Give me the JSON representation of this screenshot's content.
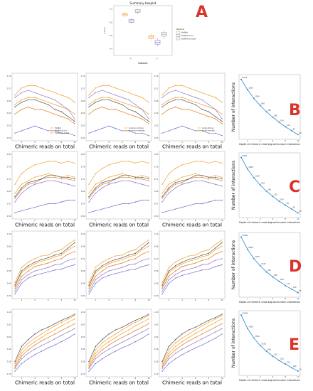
{
  "figure": {
    "letters": [
      "A",
      "B",
      "C",
      "D",
      "E"
    ]
  },
  "chart_data": [
    {
      "type": "box",
      "panel": "A",
      "title": "Summary boxplot",
      "xlabel": "Dataset",
      "ylabel": "F-score",
      "categories": [
        "fl",
        "fl"
      ],
      "legend": {
        "title": "Methods",
        "entries": [
          "HisMet",
          "HisMet as tcc",
          "HisMet as toast"
        ],
        "placement": "right"
      },
      "series": [
        {
          "name": "HisMet",
          "color": "#f0a030",
          "boxes": [
            [
              0.88,
              0.9,
              0.92,
              0.93,
              0.95
            ],
            [
              0.52,
              0.55,
              0.58,
              0.6,
              0.63
            ]
          ]
        },
        {
          "name": "HisMet as tcc",
          "color": "#8a7fd0",
          "boxes": [
            [
              0.78,
              0.8,
              0.82,
              0.84,
              0.86
            ],
            [
              0.44,
              0.47,
              0.5,
              0.53,
              0.56
            ]
          ]
        },
        {
          "name": "HisMet as toast",
          "color": "#9a9a9a",
          "boxes": [
            [
              0.92,
              0.95,
              0.97,
              0.99,
              1.0
            ],
            [
              0.55,
              0.59,
              0.62,
              0.65,
              0.68
            ]
          ]
        }
      ],
      "ylim": [
        0.3,
        1.05
      ]
    },
    {
      "type": "line",
      "panel": "B",
      "rows": 1,
      "xlabel": "Chimeric reads on total",
      "x": [
        1,
        2,
        3,
        4,
        5,
        6,
        7,
        8,
        9,
        10
      ],
      "ylim": [
        0.5,
        0.76
      ],
      "yticks": [
        0.5,
        0.55,
        0.6,
        0.65,
        0.7,
        0.75
      ],
      "legends": [
        [
          "HisMet",
          "HisMet as tcc",
          "HisMet as toast"
        ],
        [
          "precision-strong",
          "precision-overlap"
        ],
        [
          "recall-strong",
          "recall-overlap"
        ]
      ],
      "series": [
        {
          "color": "#f0a030",
          "values": [
            0.68,
            0.71,
            0.72,
            0.72,
            0.71,
            0.7,
            0.69,
            0.68,
            0.67,
            0.65
          ]
        },
        {
          "color": "#f0a030",
          "values": [
            0.64,
            0.66,
            0.67,
            0.67,
            0.66,
            0.65,
            0.64,
            0.63,
            0.62,
            0.6
          ]
        },
        {
          "color": "#e08020",
          "values": [
            0.6,
            0.62,
            0.63,
            0.62,
            0.62,
            0.61,
            0.6,
            0.59,
            0.58,
            0.56
          ]
        },
        {
          "color": "#8a7fd0",
          "values": [
            0.67,
            0.69,
            0.7,
            0.69,
            0.68,
            0.67,
            0.66,
            0.64,
            0.62,
            0.58
          ]
        },
        {
          "color": "#7a70c8",
          "values": [
            0.52,
            0.53,
            0.54,
            0.55,
            0.54,
            0.53,
            0.53,
            0.52,
            0.52,
            0.51
          ]
        },
        {
          "color": "#555555",
          "values": [
            0.63,
            0.65,
            0.66,
            0.66,
            0.65,
            0.64,
            0.62,
            0.61,
            0.59,
            0.57
          ]
        }
      ]
    },
    {
      "type": "line",
      "panel": "C",
      "xlabel": "Chimeric reads on total",
      "x": [
        1,
        2,
        3,
        4,
        5,
        6,
        7,
        8,
        9,
        10
      ],
      "ylim": [
        0.5,
        0.85
      ],
      "series": [
        {
          "color": "#f0a030",
          "values": [
            0.68,
            0.74,
            0.77,
            0.79,
            0.8,
            0.81,
            0.81,
            0.8,
            0.81,
            0.8
          ]
        },
        {
          "color": "#f0a030",
          "values": [
            0.63,
            0.68,
            0.7,
            0.72,
            0.73,
            0.74,
            0.73,
            0.72,
            0.73,
            0.72
          ]
        },
        {
          "color": "#e08020",
          "values": [
            0.6,
            0.65,
            0.68,
            0.69,
            0.71,
            0.72,
            0.72,
            0.71,
            0.71,
            0.7
          ]
        },
        {
          "color": "#8a7fd0",
          "values": [
            0.58,
            0.63,
            0.66,
            0.68,
            0.69,
            0.7,
            0.7,
            0.69,
            0.68,
            0.67
          ]
        },
        {
          "color": "#7a70c8",
          "values": [
            0.52,
            0.53,
            0.54,
            0.55,
            0.56,
            0.57,
            0.57,
            0.58,
            0.59,
            0.59
          ]
        },
        {
          "color": "#555555",
          "values": [
            0.61,
            0.66,
            0.69,
            0.7,
            0.71,
            0.73,
            0.73,
            0.72,
            0.72,
            0.71
          ]
        }
      ]
    },
    {
      "type": "line",
      "panel": "D",
      "x": [
        1,
        2,
        3,
        4,
        5,
        6,
        7,
        8,
        9,
        10
      ],
      "ylim": [
        0.3,
        1.0
      ],
      "series": [
        {
          "color": "#f0a030",
          "values": [
            0.45,
            0.62,
            0.68,
            0.72,
            0.75,
            0.76,
            0.8,
            0.82,
            0.88,
            0.93
          ]
        },
        {
          "color": "#f0a030",
          "values": [
            0.4,
            0.56,
            0.62,
            0.66,
            0.69,
            0.71,
            0.74,
            0.76,
            0.82,
            0.86
          ]
        },
        {
          "color": "#e08020",
          "values": [
            0.38,
            0.52,
            0.58,
            0.63,
            0.65,
            0.67,
            0.7,
            0.72,
            0.77,
            0.8
          ]
        },
        {
          "color": "#8a7fd0",
          "values": [
            0.35,
            0.48,
            0.54,
            0.58,
            0.6,
            0.62,
            0.65,
            0.66,
            0.7,
            0.72
          ]
        },
        {
          "color": "#7a70c8",
          "values": [
            0.32,
            0.44,
            0.5,
            0.53,
            0.55,
            0.57,
            0.59,
            0.6,
            0.63,
            0.65
          ]
        },
        {
          "color": "#555555",
          "values": [
            0.42,
            0.58,
            0.64,
            0.68,
            0.71,
            0.73,
            0.76,
            0.78,
            0.84,
            0.9
          ]
        }
      ]
    },
    {
      "type": "line",
      "panel": "E",
      "xlabel": "Chimeric reads on total",
      "x": [
        1,
        2,
        3,
        4,
        5,
        6,
        7,
        8,
        9,
        10
      ],
      "ylim": [
        0.1,
        1.0
      ],
      "series": [
        {
          "color": "#f0a030",
          "values": [
            0.25,
            0.45,
            0.55,
            0.62,
            0.68,
            0.74,
            0.8,
            0.85,
            0.9,
            0.95
          ]
        },
        {
          "color": "#f0a030",
          "values": [
            0.22,
            0.4,
            0.5,
            0.57,
            0.63,
            0.69,
            0.74,
            0.8,
            0.85,
            0.9
          ]
        },
        {
          "color": "#e08020",
          "values": [
            0.2,
            0.36,
            0.45,
            0.52,
            0.58,
            0.63,
            0.68,
            0.73,
            0.78,
            0.83
          ]
        },
        {
          "color": "#8a7fd0",
          "values": [
            0.18,
            0.32,
            0.4,
            0.46,
            0.51,
            0.56,
            0.61,
            0.66,
            0.71,
            0.76
          ]
        },
        {
          "color": "#7a70c8",
          "values": [
            0.14,
            0.25,
            0.32,
            0.38,
            0.43,
            0.48,
            0.52,
            0.57,
            0.62,
            0.68
          ]
        },
        {
          "color": "#555555",
          "values": [
            0.28,
            0.5,
            0.6,
            0.68,
            0.74,
            0.78,
            0.83,
            0.88,
            0.92,
            0.97
          ]
        }
      ]
    },
    {
      "type": "line",
      "panel": "B-right",
      "xlabel": "Depth of chimeric read aligned to each interaction",
      "ylabel": "Number of interactions",
      "yscale": "log",
      "x": [
        1,
        2,
        3,
        4,
        5,
        6,
        7,
        8,
        9,
        10
      ],
      "values": [
        8000,
        3200,
        1500,
        800,
        450,
        280,
        180,
        120,
        85,
        60
      ]
    },
    {
      "type": "line",
      "panel": "C-right",
      "xlabel": "Depth of chimeric read aligned to each interaction",
      "ylabel": "Number of interactions",
      "yscale": "log",
      "x": [
        1,
        2,
        3,
        4,
        5,
        6,
        7,
        8,
        9,
        10
      ],
      "values": [
        9000,
        3000,
        1300,
        650,
        360,
        220,
        140,
        95,
        65,
        45
      ]
    },
    {
      "type": "line",
      "panel": "D-right",
      "xlabel": "Depth of chimeric read aligned to each interaction",
      "ylabel": "Number of interactions",
      "yscale": "log",
      "x": [
        1,
        2,
        3,
        4,
        5,
        6,
        7,
        8,
        9,
        10
      ],
      "values": [
        20000,
        6000,
        2400,
        1200,
        650,
        400,
        260,
        170,
        120,
        85
      ]
    },
    {
      "type": "line",
      "panel": "E-right",
      "xlabel": "Depth of chimeric read aligned to each interaction",
      "ylabel": "Number of interactions",
      "yscale": "log",
      "x": [
        1,
        2,
        3,
        4,
        5,
        6,
        7,
        8,
        9,
        10
      ],
      "values": [
        30000,
        7000,
        2500,
        1100,
        600,
        350,
        220,
        150,
        100,
        70
      ]
    }
  ]
}
